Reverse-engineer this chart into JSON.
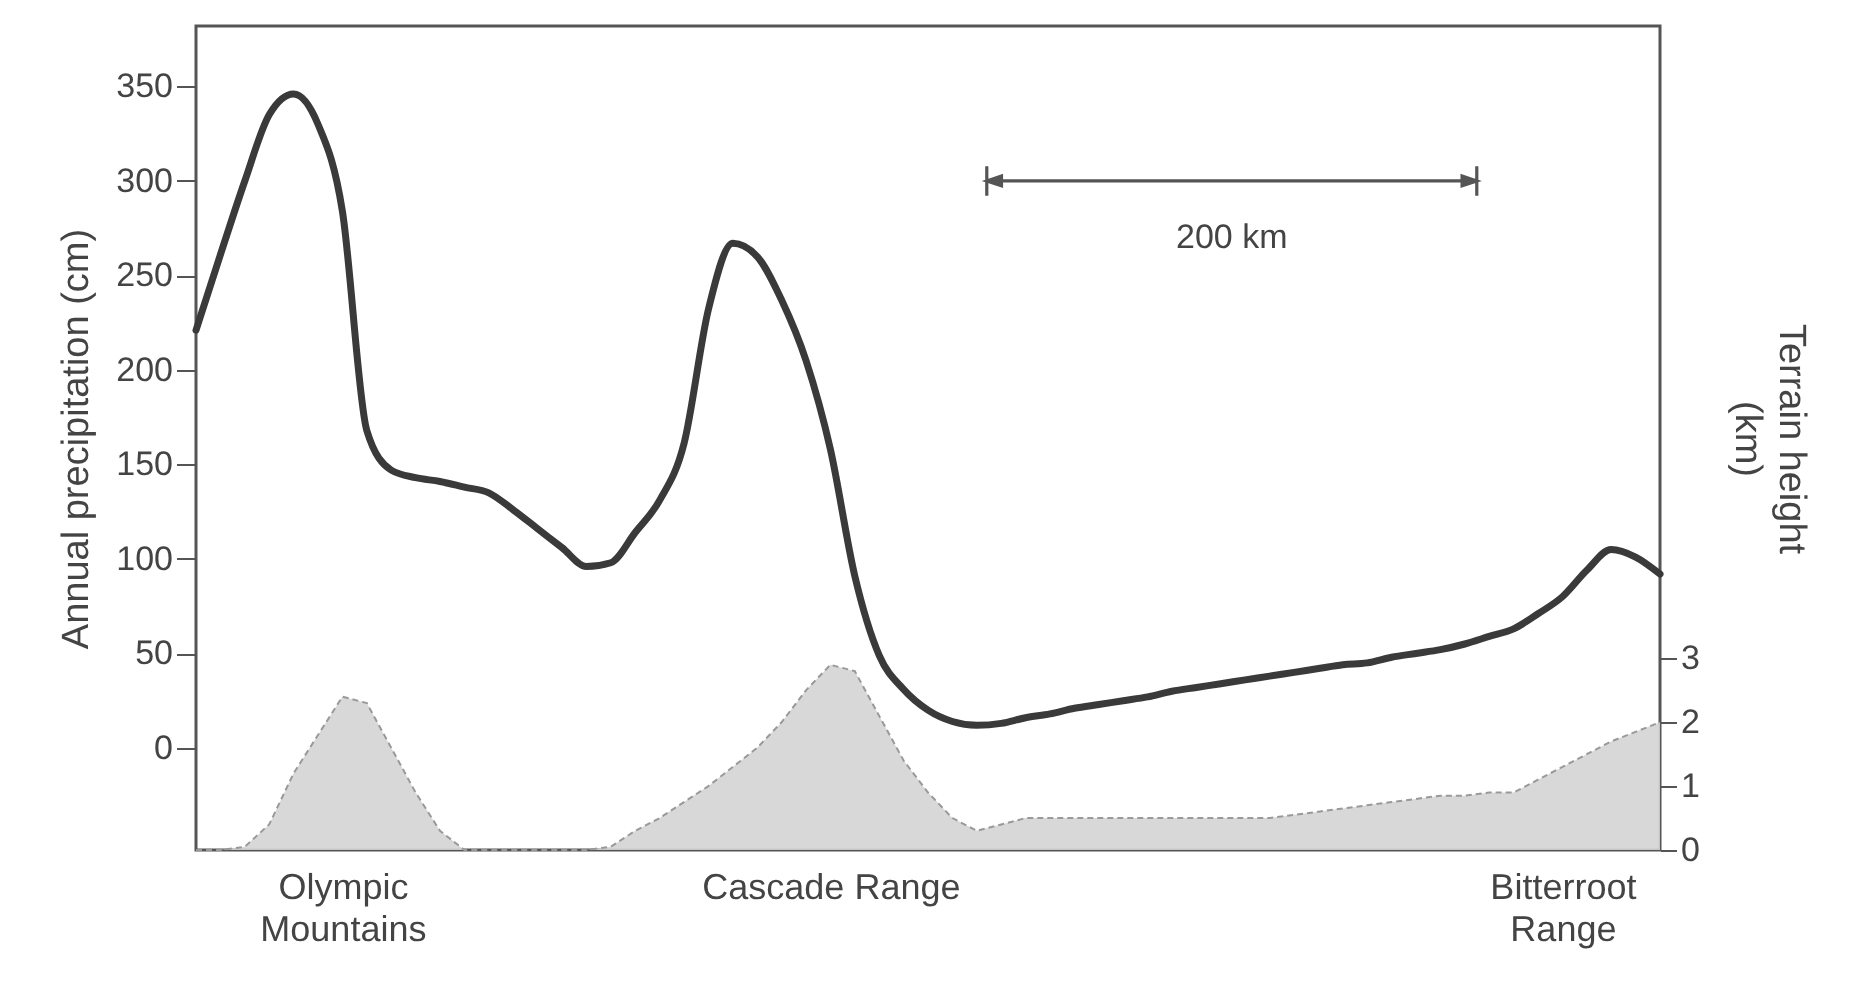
{
  "chart_data": {
    "type": "line",
    "ylabel": "Annual precipitation (cm)",
    "y2label": "Terrain height\n(km)",
    "annotations": [
      "200 km"
    ],
    "categories": [
      null,
      null,
      null,
      null,
      null,
      null,
      "Olympic\nMountains",
      null,
      null,
      null,
      null,
      null,
      null,
      null,
      null,
      null,
      null,
      null,
      null,
      null,
      null,
      null,
      null,
      null,
      null,
      null,
      "Cascade Range",
      null,
      null,
      null,
      null,
      null,
      null,
      null,
      null,
      null,
      null,
      null,
      null,
      null,
      null,
      null,
      null,
      null,
      null,
      null,
      null,
      null,
      null,
      null,
      null,
      null,
      null,
      null,
      null,
      null,
      "Bitterroot\nRange",
      null,
      null,
      null,
      null
    ],
    "ylim": [
      -54,
      382
    ],
    "yticks": [
      0,
      50,
      100,
      150,
      200,
      250,
      300,
      350
    ],
    "y2lim": [
      0,
      12.9
    ],
    "y2ticks": [
      0,
      1,
      2,
      3
    ],
    "grid": false,
    "series": [
      {
        "type": "area",
        "axis": "y2",
        "color": "#d4d4d4",
        "values": [
          0,
          0,
          0.05,
          0.4,
          1.2,
          1.8,
          2.4,
          2.3,
          1.6,
          0.9,
          0.3,
          0,
          0,
          0,
          0,
          0,
          0,
          0.05,
          0.3,
          0.5,
          0.75,
          1.0,
          1.3,
          1.6,
          2.0,
          2.5,
          2.9,
          2.8,
          2.1,
          1.4,
          0.9,
          0.5,
          0.3,
          0.4,
          0.5,
          0.5,
          0.5,
          0.5,
          0.5,
          0.5,
          0.5,
          0.5,
          0.5,
          0.5,
          0.5,
          0.55,
          0.6,
          0.65,
          0.7,
          0.75,
          0.8,
          0.85,
          0.85,
          0.9,
          0.9,
          1.1,
          1.3,
          1.5,
          1.7,
          1.85,
          2.0
        ]
      },
      {
        "type": "line",
        "color": "#3a3a3a",
        "values": [
          221,
          261,
          300,
          335,
          346,
          330,
          284,
          168,
          147,
          143,
          141,
          138,
          135,
          126,
          116,
          106,
          96,
          98,
          114,
          131,
          161,
          232,
          267,
          260,
          237,
          205,
          158,
          91,
          49,
          31,
          20,
          14,
          12,
          13,
          16,
          18,
          21,
          23,
          25,
          27,
          30,
          32,
          34,
          36,
          38,
          40,
          42,
          44,
          45,
          48,
          50,
          52,
          55,
          59,
          63,
          71,
          80,
          94,
          105,
          101,
          92
        ]
      }
    ]
  }
}
